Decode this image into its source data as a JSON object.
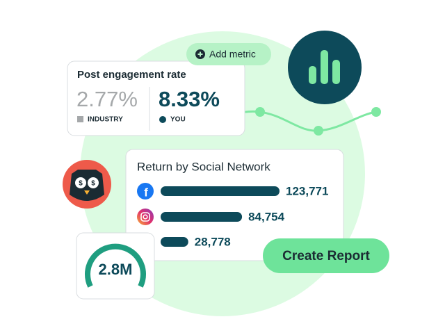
{
  "engagement_card": {
    "title": "Post engagement rate",
    "industry_value": "2.77%",
    "industry_label": "INDUSTRY",
    "you_value": "8.33%",
    "you_label": "YOU"
  },
  "add_metric_button": "Add metric",
  "return_card": {
    "title": "Return by Social Network",
    "bars": [
      {
        "value": 123771,
        "label": "123,771"
      },
      {
        "value": 84754,
        "label": "84,754"
      },
      {
        "value": 28778,
        "label": "28,778"
      }
    ]
  },
  "gauge_card": {
    "value": "2.8M"
  },
  "create_report_button": "Create Report"
}
